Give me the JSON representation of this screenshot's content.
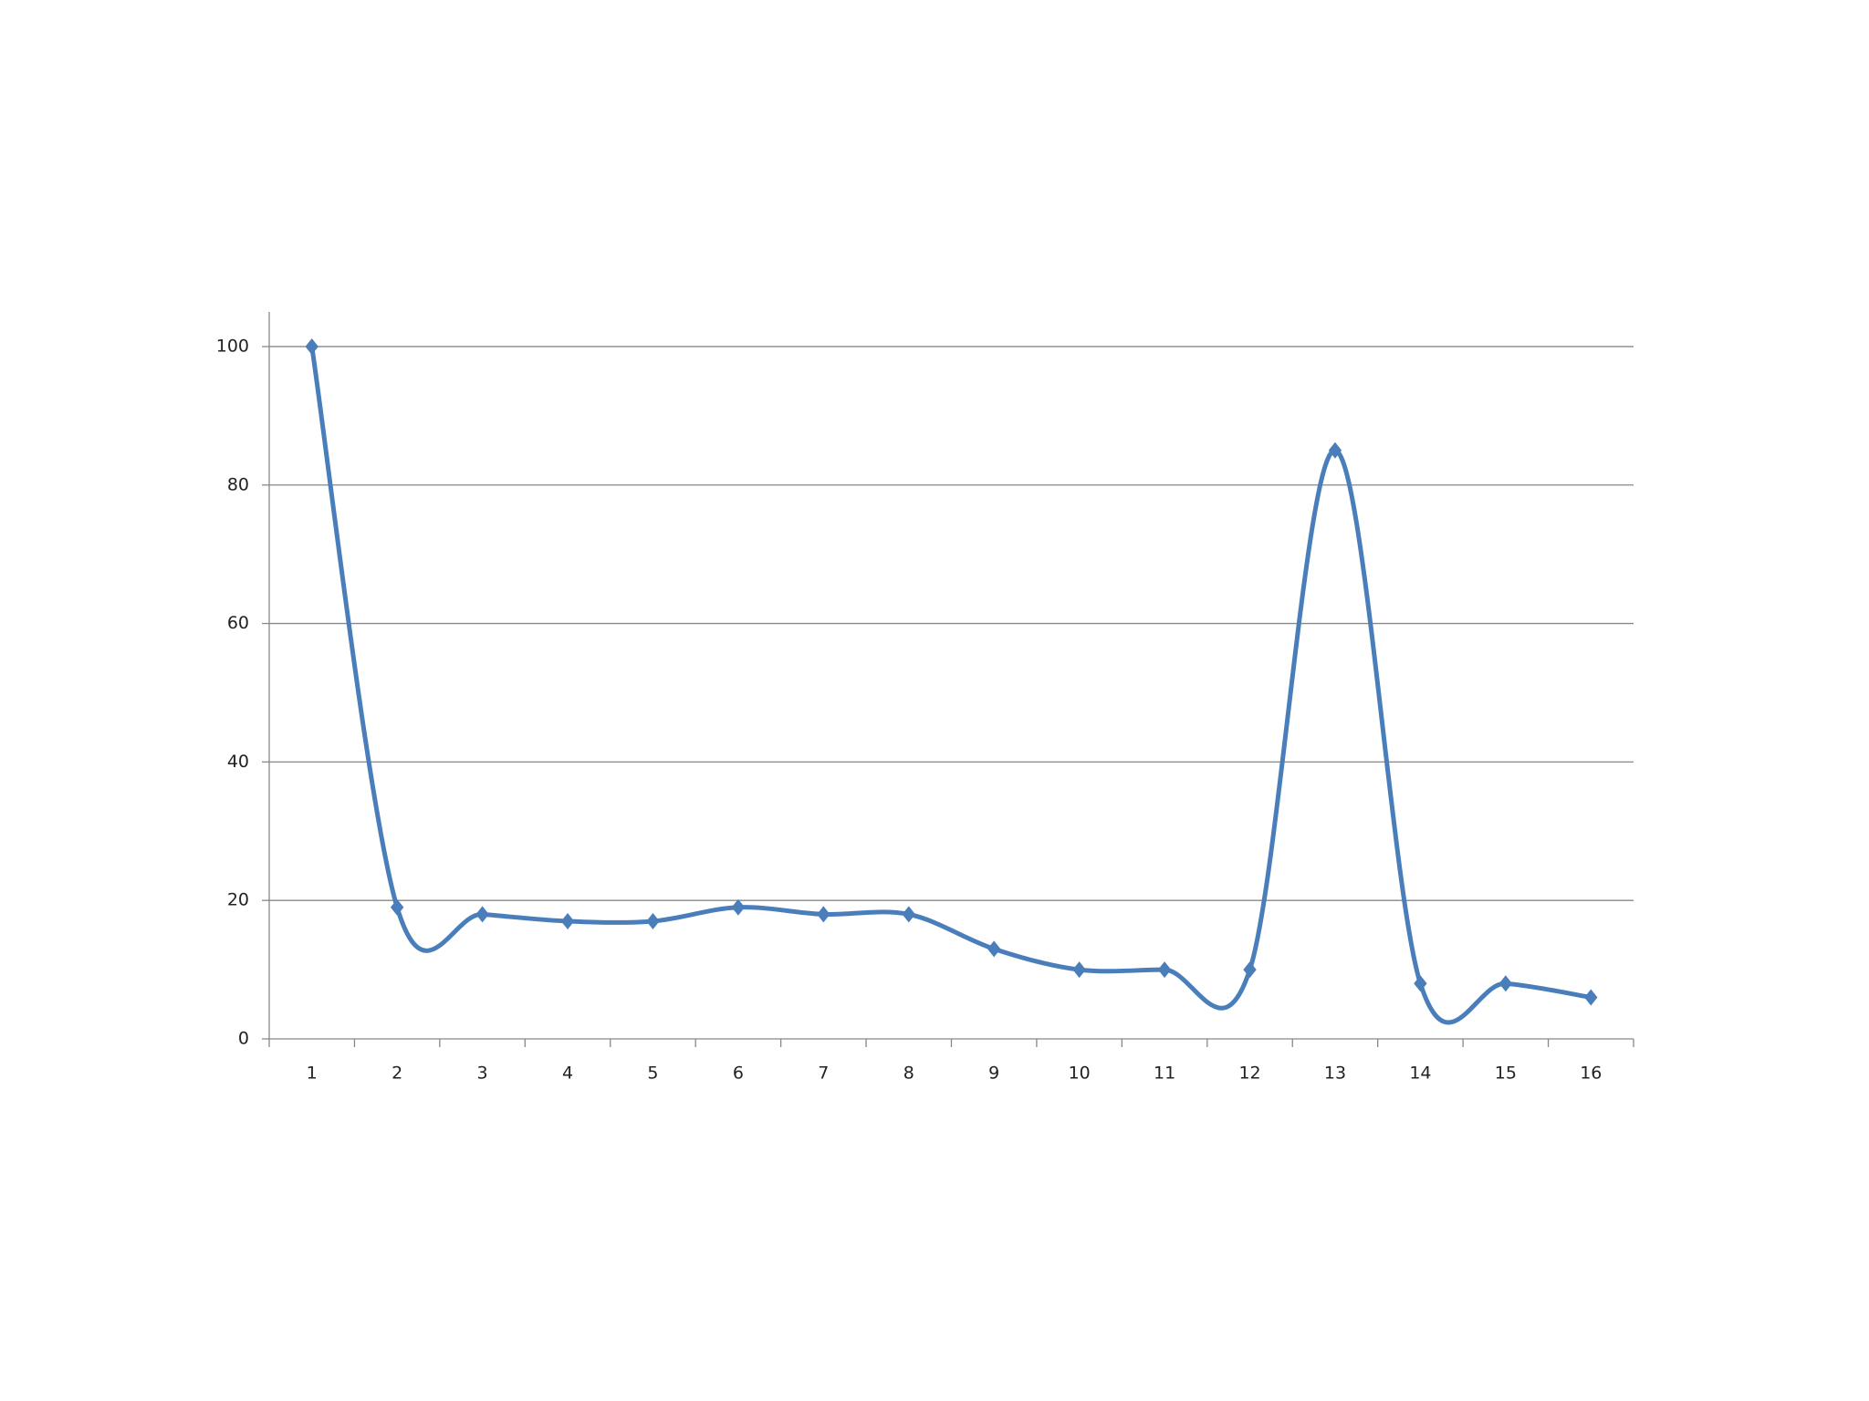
{
  "chart_data": {
    "type": "line",
    "categories": [
      "1",
      "2",
      "3",
      "4",
      "5",
      "6",
      "7",
      "8",
      "9",
      "10",
      "11",
      "12",
      "13",
      "14",
      "15",
      "16"
    ],
    "series": [
      {
        "color": "#4a7ebb",
        "values": [
          100,
          19,
          18,
          17,
          17,
          19,
          18,
          18,
          13,
          10,
          10,
          10,
          85,
          8,
          8,
          6
        ]
      }
    ],
    "ylim": [
      0,
      105
    ],
    "yticks": [
      0,
      20,
      40,
      60,
      80,
      100
    ],
    "grid": true,
    "smooth": true,
    "marker": "diamond"
  }
}
